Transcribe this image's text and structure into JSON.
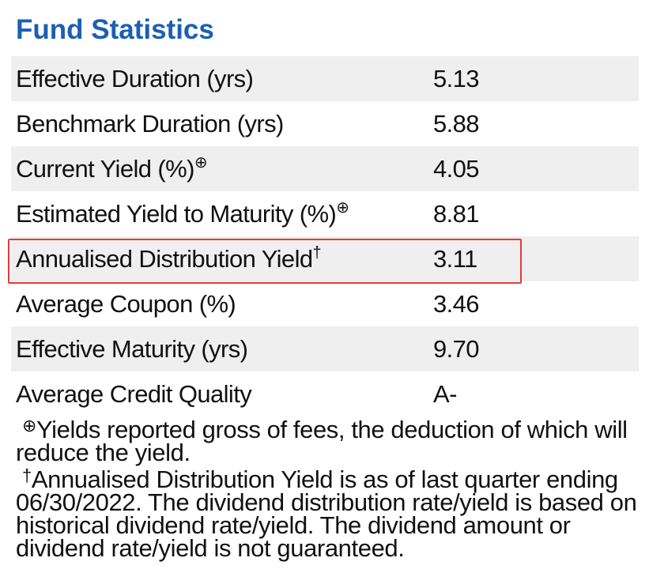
{
  "header": {
    "title": "Fund Statistics"
  },
  "table": {
    "rows": [
      {
        "label": "Effective Duration (yrs)",
        "value": "5.13"
      },
      {
        "label": "Benchmark Duration (yrs)",
        "value": "5.88"
      },
      {
        "label": "Current Yield (%)",
        "note": "⊕",
        "value": "4.05"
      },
      {
        "label": "Estimated Yield to Maturity (%)",
        "note": "⊕",
        "value": "8.81"
      },
      {
        "label": "Annualised Distribution Yield",
        "note": "†",
        "value": "3.11"
      },
      {
        "label": "Average Coupon (%)",
        "value": "3.46"
      },
      {
        "label": "Effective Maturity (yrs)",
        "value": "9.70"
      },
      {
        "label": "Average Credit Quality",
        "value": "A-"
      }
    ]
  },
  "footnotes": [
    {
      "symbol": "⊕",
      "text": "Yields reported gross of fees, the deduction of which will reduce the yield."
    },
    {
      "symbol": "†",
      "text": "Annualised Distribution Yield is as of last quarter ending 06/30/2022. The dividend distribution rate/yield is based on historical dividend rate/yield. The dividend amount or dividend rate/yield is not guaranteed."
    }
  ]
}
